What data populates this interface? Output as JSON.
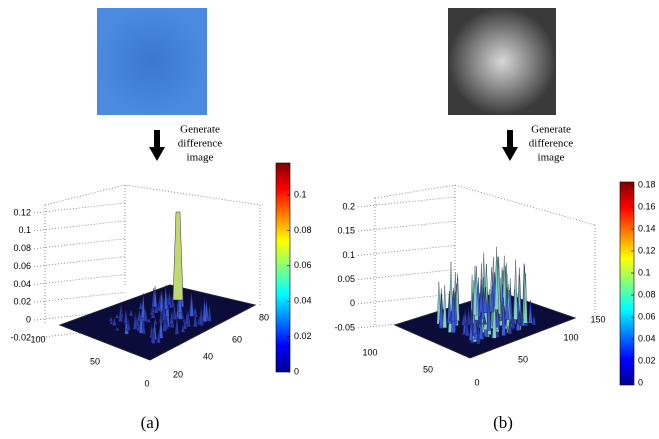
{
  "panels": [
    {
      "arrow_label": [
        "Generate",
        "difference",
        "image"
      ],
      "z_ticks": [
        "0.12",
        "0.1",
        "0.08",
        "0.06",
        "0.04",
        "0.02",
        "0",
        "-0.02"
      ],
      "y_ticks": [
        "100",
        "50",
        "0"
      ],
      "x_ticks": [
        "20",
        "40",
        "60",
        "80"
      ],
      "colorbar_ticks": [
        "0.1",
        "0.08",
        "0.06",
        "0.04",
        "0.02",
        "0"
      ],
      "caption": "(a)"
    },
    {
      "arrow_label": [
        "Generate",
        "difference",
        "image"
      ],
      "z_ticks": [
        "0.2",
        "0.15",
        "0.1",
        "0.05",
        "0",
        "-0.05"
      ],
      "y_ticks": [
        "100",
        "50"
      ],
      "x_ticks": [
        "0",
        "50",
        "100",
        "150"
      ],
      "colorbar_ticks": [
        "0.18",
        "0.16",
        "0.14",
        "0.12",
        "0.1",
        "0.08",
        "0.06",
        "0.04",
        "0.02",
        "0"
      ],
      "caption": "(b)"
    }
  ]
}
